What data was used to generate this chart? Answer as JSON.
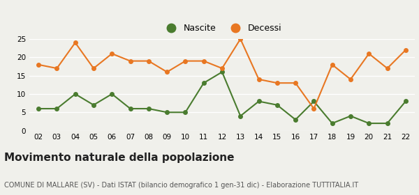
{
  "years": [
    2,
    3,
    4,
    5,
    6,
    7,
    8,
    9,
    10,
    11,
    12,
    13,
    14,
    15,
    16,
    17,
    18,
    19,
    20,
    21,
    22
  ],
  "nascite": [
    6,
    6,
    10,
    7,
    10,
    6,
    6,
    5,
    5,
    13,
    16,
    4,
    8,
    7,
    3,
    8,
    2,
    4,
    2,
    2,
    8
  ],
  "decessi": [
    18,
    17,
    24,
    17,
    21,
    19,
    19,
    16,
    19,
    19,
    17,
    25,
    14,
    13,
    13,
    6,
    18,
    14,
    21,
    17,
    22
  ],
  "nascite_color": "#4a7c2f",
  "decessi_color": "#e87722",
  "background_color": "#f0f0eb",
  "grid_color": "#ffffff",
  "title": "Movimento naturale della popolazione",
  "subtitle": "COMUNE DI MALLARE (SV) - Dati ISTAT (bilancio demografico 1 gen-31 dic) - Elaborazione TUTTITALIA.IT",
  "legend_nascite": "Nascite",
  "legend_decessi": "Decessi",
  "ylim": [
    0,
    25
  ],
  "yticks": [
    0,
    5,
    10,
    15,
    20,
    25
  ],
  "marker": "o",
  "markersize": 4,
  "linewidth": 1.5,
  "title_fontsize": 11,
  "subtitle_fontsize": 7,
  "tick_fontsize": 7.5,
  "legend_fontsize": 9
}
